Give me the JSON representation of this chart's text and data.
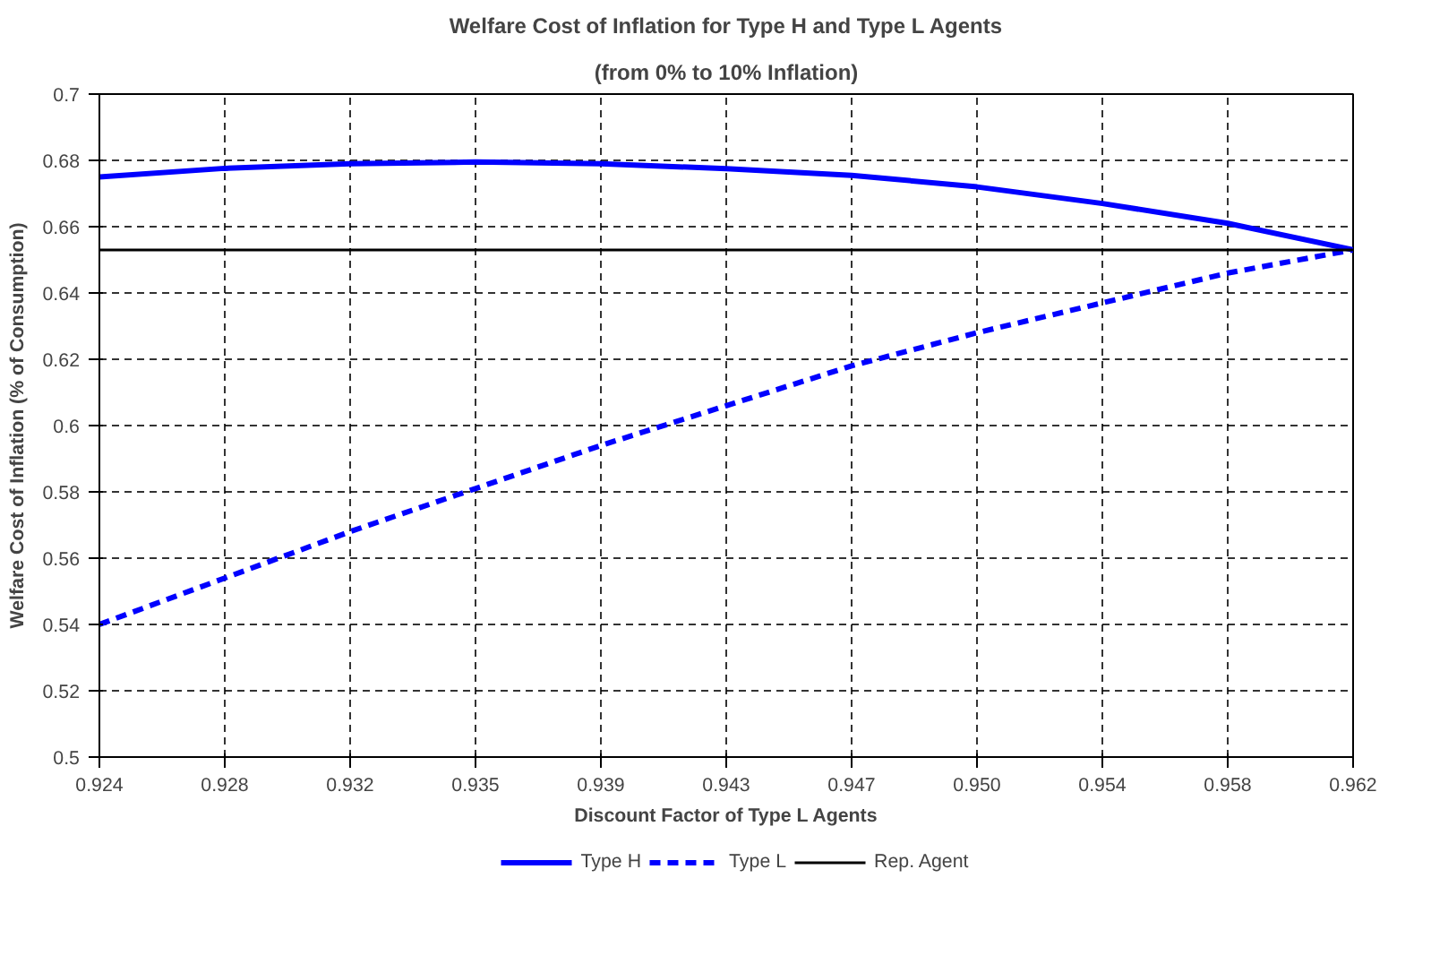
{
  "chart_data": {
    "type": "line",
    "title": "Welfare Cost of Inflation for Type H and Type L Agents",
    "subtitle": "(from 0% to 10% Inflation)",
    "xlabel": "Discount Factor of Type L Agents",
    "ylabel": "Welfare Cost of Inflation (% of Consumption)",
    "categories": [
      "0.924",
      "0.928",
      "0.932",
      "0.935",
      "0.939",
      "0.943",
      "0.947",
      "0.950",
      "0.954",
      "0.958",
      "0.962"
    ],
    "series": [
      {
        "name": "Type H",
        "color": "#0000ff",
        "line_style": "solid",
        "values": [
          0.675,
          0.6776,
          0.679,
          0.6795,
          0.679,
          0.6775,
          0.6755,
          0.672,
          0.667,
          0.661,
          0.653
        ]
      },
      {
        "name": "Type L",
        "color": "#0000ff",
        "line_style": "dashed",
        "values": [
          0.54,
          0.554,
          0.568,
          0.581,
          0.594,
          0.606,
          0.618,
          0.628,
          0.637,
          0.646,
          0.653
        ]
      },
      {
        "name": "Rep. Agent",
        "color": "#000000",
        "line_style": "solid",
        "values": [
          0.653,
          0.653,
          0.653,
          0.653,
          0.653,
          0.653,
          0.653,
          0.653,
          0.653,
          0.653,
          0.653
        ]
      }
    ],
    "ylim": [
      0.5,
      0.7
    ],
    "yticks": [
      0.5,
      0.52,
      0.54,
      0.56,
      0.58,
      0.6,
      0.62,
      0.64,
      0.66,
      0.68,
      0.7
    ],
    "grid": true,
    "legend": "bottom"
  }
}
